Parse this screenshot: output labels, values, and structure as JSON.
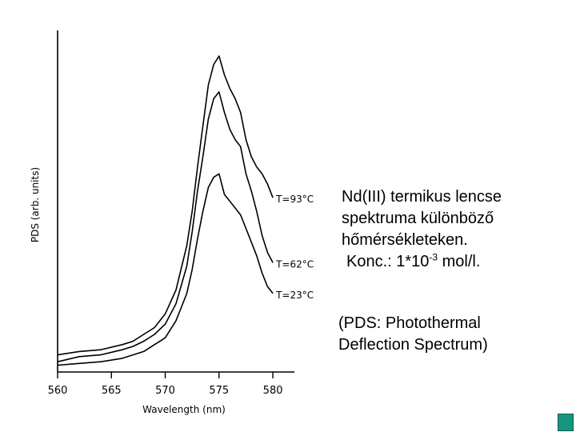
{
  "chart_data": {
    "type": "line",
    "xlabel": "Wavelength (nm)",
    "ylabel": "PDS (arb. units)",
    "xlim": [
      560,
      582
    ],
    "ylim": [
      0,
      1.0
    ],
    "x_ticks": [
      560,
      565,
      570,
      575,
      580
    ],
    "y_ticks_labeled": false,
    "grid": false,
    "legend": "none (curves labeled at right end)",
    "series": [
      {
        "name": "T=93°C",
        "x": [
          560,
          562,
          564,
          566,
          567,
          568,
          569,
          570,
          571,
          572,
          572.5,
          573,
          573.5,
          574,
          574.5,
          575,
          575.5,
          576,
          576.5,
          577,
          577.5,
          578,
          578.5,
          579,
          579.5,
          580
        ],
        "y": [
          0.05,
          0.06,
          0.065,
          0.08,
          0.09,
          0.11,
          0.13,
          0.17,
          0.24,
          0.37,
          0.47,
          0.6,
          0.72,
          0.84,
          0.9,
          0.925,
          0.87,
          0.83,
          0.8,
          0.76,
          0.68,
          0.63,
          0.6,
          0.58,
          0.55,
          0.51
        ]
      },
      {
        "name": "T=62°C",
        "x": [
          560,
          562,
          564,
          566,
          567,
          568,
          569,
          570,
          571,
          572,
          572.5,
          573,
          573.5,
          574,
          574.5,
          575,
          575.5,
          576,
          576.5,
          577,
          577.5,
          578,
          578.5,
          579,
          579.5,
          580
        ],
        "y": [
          0.03,
          0.045,
          0.05,
          0.065,
          0.075,
          0.09,
          0.11,
          0.14,
          0.2,
          0.31,
          0.41,
          0.53,
          0.63,
          0.74,
          0.8,
          0.82,
          0.76,
          0.71,
          0.68,
          0.66,
          0.58,
          0.53,
          0.47,
          0.4,
          0.35,
          0.32
        ]
      },
      {
        "name": "T=23°C",
        "x": [
          560,
          562,
          564,
          566,
          567,
          568,
          569,
          570,
          571,
          572,
          572.5,
          573,
          573.5,
          574,
          574.5,
          575,
          575.5,
          576,
          576.5,
          577,
          577.5,
          578,
          578.5,
          579,
          579.5,
          580
        ],
        "y": [
          0.02,
          0.025,
          0.03,
          0.04,
          0.05,
          0.06,
          0.08,
          0.1,
          0.15,
          0.23,
          0.3,
          0.39,
          0.47,
          0.54,
          0.57,
          0.58,
          0.52,
          0.5,
          0.48,
          0.46,
          0.42,
          0.38,
          0.34,
          0.29,
          0.25,
          0.23
        ]
      }
    ]
  },
  "caption": {
    "line1": "Nd(III) termikus lencse",
    "line2": "spektruma különböző",
    "line3": "hőmérsékleteken.",
    "line4_prefix": "Konc.: 1*10",
    "line4_exp": "-3",
    "line4_suffix": " mol/l.",
    "note_line1": "(PDS: Photothermal",
    "note_line2": "Deflection Spectrum)"
  },
  "colors": {
    "ink": "#000000",
    "corner_block": "#17967f"
  }
}
